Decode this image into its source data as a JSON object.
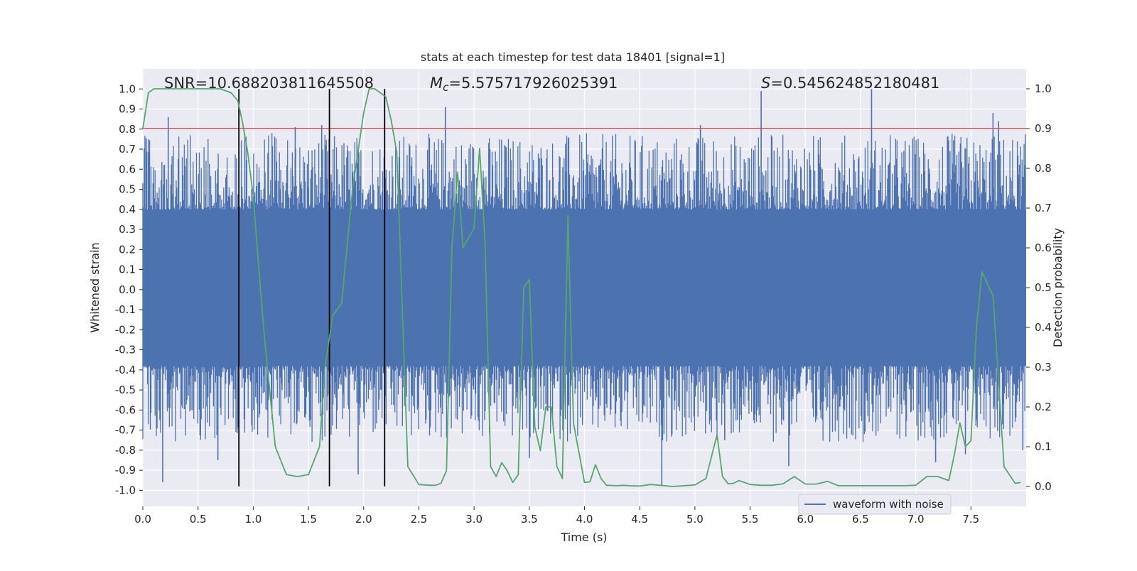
{
  "chart_data": {
    "type": "line",
    "title": "stats at each timestep for test data 18401 [signal=1]",
    "xlabel": "Time (s)",
    "ylabel": "Whitened strain",
    "y2label": "Detection probability",
    "xlim": [
      0.0,
      8.0
    ],
    "ylim": [
      -1.08,
      1.1
    ],
    "y2lim": [
      -0.05,
      1.05
    ],
    "xticks": [
      "0.0",
      "0.5",
      "1.0",
      "1.5",
      "2.0",
      "2.5",
      "3.0",
      "3.5",
      "4.0",
      "4.5",
      "5.0",
      "5.5",
      "6.0",
      "6.5",
      "7.0",
      "7.5"
    ],
    "yticks": [
      "-1.0",
      "-0.9",
      "-0.8",
      "-0.7",
      "-0.6",
      "-0.5",
      "-0.4",
      "-0.3",
      "-0.2",
      "-0.1",
      "0.0",
      "0.1",
      "0.2",
      "0.3",
      "0.4",
      "0.5",
      "0.6",
      "0.7",
      "0.8",
      "0.9",
      "1.0"
    ],
    "y2ticks": [
      "0.0",
      "0.1",
      "0.2",
      "0.3",
      "0.4",
      "0.5",
      "0.6",
      "0.7",
      "0.8",
      "0.9",
      "1.0"
    ],
    "grid": true,
    "legend": {
      "location": "lower-right",
      "entries": [
        "waveform with noise"
      ]
    },
    "annotations": {
      "snr": "SNR=10.688203811645508",
      "mc_symbol": "M",
      "mc_sub": "c",
      "mc_value": "=5.575717926025391",
      "s_symbol": "S",
      "s_value": "=0.545624852180481"
    },
    "threshold": {
      "axis": "right",
      "value": 0.9,
      "color": "#c44e52"
    },
    "vertical_lines": {
      "x": [
        0.87,
        1.69,
        2.19
      ],
      "ymin": -0.98,
      "ymax": 1.0,
      "color": "#000000"
    },
    "waveform": {
      "name": "waveform with noise",
      "color": "#4c72b0",
      "band_low": -0.38,
      "band_high": 0.4,
      "duration": 8.0,
      "spikes": [
        {
          "x": 0.03,
          "y": 0.75
        },
        {
          "x": 0.18,
          "y": -0.96
        },
        {
          "x": 0.23,
          "y": 0.86
        },
        {
          "x": 0.68,
          "y": -0.85
        },
        {
          "x": 1.38,
          "y": 0.81
        },
        {
          "x": 1.62,
          "y": 0.82
        },
        {
          "x": 1.95,
          "y": -0.92
        },
        {
          "x": 2.74,
          "y": 0.91
        },
        {
          "x": 3.5,
          "y": -0.84
        },
        {
          "x": 4.7,
          "y": -0.98
        },
        {
          "x": 5.05,
          "y": 0.82
        },
        {
          "x": 5.27,
          "y": -0.75
        },
        {
          "x": 5.6,
          "y": 0.99
        },
        {
          "x": 5.85,
          "y": -0.88
        },
        {
          "x": 6.6,
          "y": 1.0
        },
        {
          "x": 7.18,
          "y": -0.86
        },
        {
          "x": 7.45,
          "y": -0.82
        },
        {
          "x": 7.7,
          "y": 0.88
        },
        {
          "x": 7.75,
          "y": 0.84
        },
        {
          "x": 7.97,
          "y": -0.8
        }
      ]
    },
    "series": [
      {
        "name": "detection probability",
        "axis": "right",
        "color": "#55a868",
        "x": [
          0.0,
          0.05,
          0.1,
          0.2,
          0.3,
          0.5,
          0.7,
          0.8,
          0.86,
          0.9,
          0.95,
          1.0,
          1.05,
          1.1,
          1.2,
          1.3,
          1.4,
          1.5,
          1.6,
          1.65,
          1.72,
          1.8,
          1.9,
          2.0,
          2.05,
          2.1,
          2.2,
          2.25,
          2.3,
          2.4,
          2.5,
          2.6,
          2.65,
          2.7,
          2.75,
          2.8,
          2.85,
          2.9,
          3.0,
          3.05,
          3.1,
          3.15,
          3.2,
          3.25,
          3.3,
          3.35,
          3.4,
          3.45,
          3.5,
          3.55,
          3.6,
          3.65,
          3.7,
          3.75,
          3.8,
          3.85,
          3.9,
          4.0,
          4.05,
          4.1,
          4.15,
          4.2,
          4.3,
          4.35,
          4.4,
          4.5,
          4.6,
          4.8,
          5.0,
          5.1,
          5.2,
          5.25,
          5.3,
          5.35,
          5.4,
          5.5,
          5.6,
          5.7,
          5.8,
          5.9,
          6.0,
          6.1,
          6.2,
          6.3,
          6.5,
          6.7,
          6.9,
          7.0,
          7.1,
          7.2,
          7.3,
          7.35,
          7.4,
          7.45,
          7.5,
          7.55,
          7.6,
          7.7,
          7.8,
          7.9,
          7.95
        ],
        "values": [
          0.9,
          0.99,
          1.0,
          1.0,
          1.0,
          1.0,
          1.0,
          0.99,
          0.97,
          0.92,
          0.84,
          0.73,
          0.55,
          0.38,
          0.1,
          0.03,
          0.025,
          0.03,
          0.1,
          0.3,
          0.43,
          0.46,
          0.75,
          0.94,
          1.0,
          1.0,
          0.98,
          0.92,
          0.84,
          0.05,
          0.005,
          0.003,
          0.003,
          0.008,
          0.04,
          0.6,
          0.79,
          0.6,
          0.65,
          0.85,
          0.61,
          0.05,
          0.025,
          0.06,
          0.04,
          0.01,
          0.03,
          0.5,
          0.52,
          0.15,
          0.09,
          0.2,
          0.2,
          0.05,
          0.02,
          0.68,
          0.16,
          0.01,
          0.012,
          0.055,
          0.02,
          0.003,
          0.002,
          0.003,
          0.002,
          0.001,
          0.005,
          0.0,
          0.004,
          0.02,
          0.13,
          0.025,
          0.007,
          0.008,
          0.015,
          0.005,
          0.003,
          0.003,
          0.007,
          0.025,
          0.006,
          0.006,
          0.013,
          0.002,
          0.002,
          0.002,
          0.002,
          0.003,
          0.025,
          0.025,
          0.015,
          0.08,
          0.16,
          0.1,
          0.115,
          0.4,
          0.54,
          0.48,
          0.05,
          0.008,
          0.01
        ],
        "note": "values listed in same order as x"
      }
    ]
  }
}
